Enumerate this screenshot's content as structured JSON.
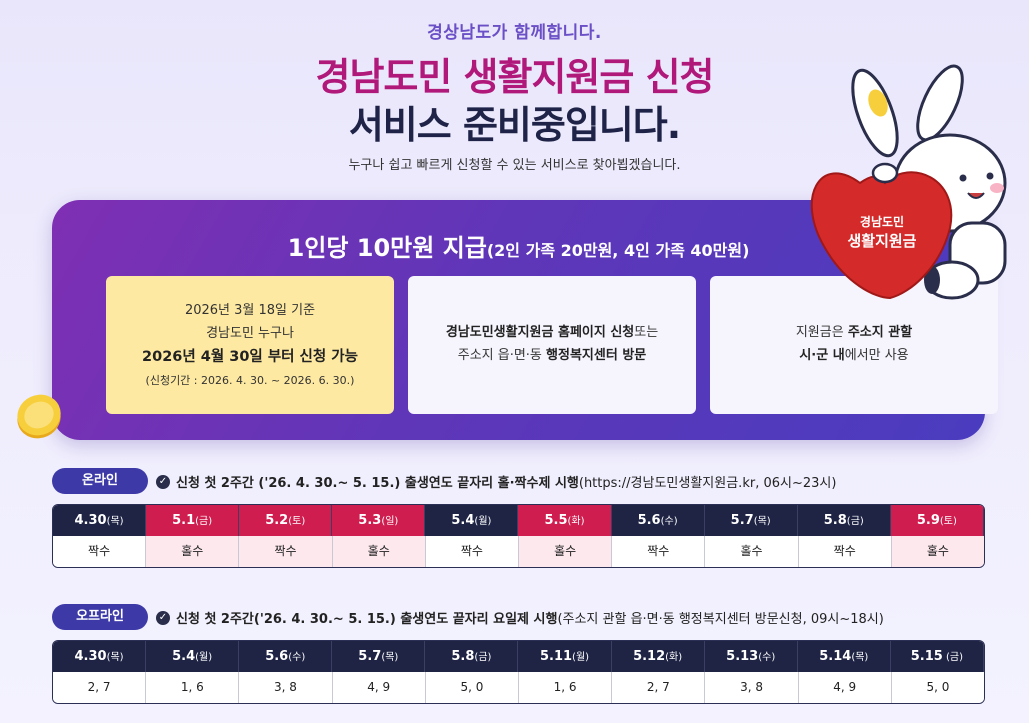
{
  "header": {
    "sub": "경상남도가 함께합니다.",
    "title_line1": "경남도민 생활지원금 신청",
    "title_line2": "서비스 준비중입니다.",
    "description": "누구나 쉽고 빠르게 신청할 수 있는 서비스로 찾아뵙겠습니다."
  },
  "mascot": {
    "badge_line1": "경남도민",
    "badge_line2": "생활지원금"
  },
  "panel": {
    "heading": "1인당 10만원 지급",
    "heading_small": "(2인 가족 20만원, 4인 가족 40만원)",
    "card1": {
      "line1": "2026년 3월 18일 기준",
      "line2": "경남도민 누구나",
      "line3": "2026년 4월 30일 부터 신청 가능",
      "line4": "(신청기간 : 2026. 4. 30. ~ 2026. 6. 30.)"
    },
    "card2": {
      "line1_bold": "경남도민생활지원금 홈페이지 신청",
      "line1_rest": "또는",
      "line2_pre": "주소지 읍·면·동 ",
      "line2_bold": "행정복지센터 방문"
    },
    "card3": {
      "line1_pre": "지원금은 ",
      "line1_bold": "주소지 관할",
      "line2_bold": "시·군 내",
      "line2_rest": "에서만 사용"
    }
  },
  "online": {
    "label": "온라인",
    "note_bold": "신청 첫 2주간 ('26. 4. 30.~ 5. 15.) 출생연도 끝자리 홀·짝수제 시행",
    "note_rest": " (https://경남도민생활지원금.kr, 06시~23시)",
    "dates": [
      {
        "d": "4.30",
        "w": "(목)",
        "red": false
      },
      {
        "d": "5.1",
        "w": "(금)",
        "red": true
      },
      {
        "d": "5.2",
        "w": "(토)",
        "red": true
      },
      {
        "d": "5.3",
        "w": "(일)",
        "red": true
      },
      {
        "d": "5.4",
        "w": "(월)",
        "red": false
      },
      {
        "d": "5.5",
        "w": "(화)",
        "red": true
      },
      {
        "d": "5.6",
        "w": "(수)",
        "red": false
      },
      {
        "d": "5.7",
        "w": "(목)",
        "red": false
      },
      {
        "d": "5.8",
        "w": "(금)",
        "red": false
      },
      {
        "d": "5.9",
        "w": "(토)",
        "red": true
      }
    ],
    "values": [
      "짝수",
      "홀수",
      "짝수",
      "홀수",
      "짝수",
      "홀수",
      "짝수",
      "홀수",
      "짝수",
      "홀수"
    ]
  },
  "offline": {
    "label": "오프라인",
    "note_bold": "신청 첫 2주간('26. 4. 30.~ 5. 15.) 출생연도 끝자리 요일제 시행",
    "note_rest": " (주소지 관할 읍·면·동 행정복지센터 방문신청, 09시~18시)",
    "dates": [
      {
        "d": "4.30",
        "w": "(목)"
      },
      {
        "d": "5.4",
        "w": "(월)"
      },
      {
        "d": "5.6",
        "w": "(수)"
      },
      {
        "d": "5.7",
        "w": "(목)"
      },
      {
        "d": "5.8",
        "w": "(금)"
      },
      {
        "d": "5.11",
        "w": "(월)"
      },
      {
        "d": "5.12",
        "w": "(화)"
      },
      {
        "d": "5.13",
        "w": "(수)"
      },
      {
        "d": "5.14",
        "w": "(목)"
      },
      {
        "d": "5.15",
        "w": " (금)"
      }
    ],
    "values": [
      "2, 7",
      "1, 6",
      "3, 8",
      "4, 9",
      "5, 0",
      "1, 6",
      "2, 7",
      "3, 8",
      "4, 9",
      "5, 0"
    ]
  },
  "colors": {
    "accent": "#3d3aa8",
    "red": "#cf1d4f",
    "navy": "#1f2445",
    "title": "#b0187a"
  }
}
